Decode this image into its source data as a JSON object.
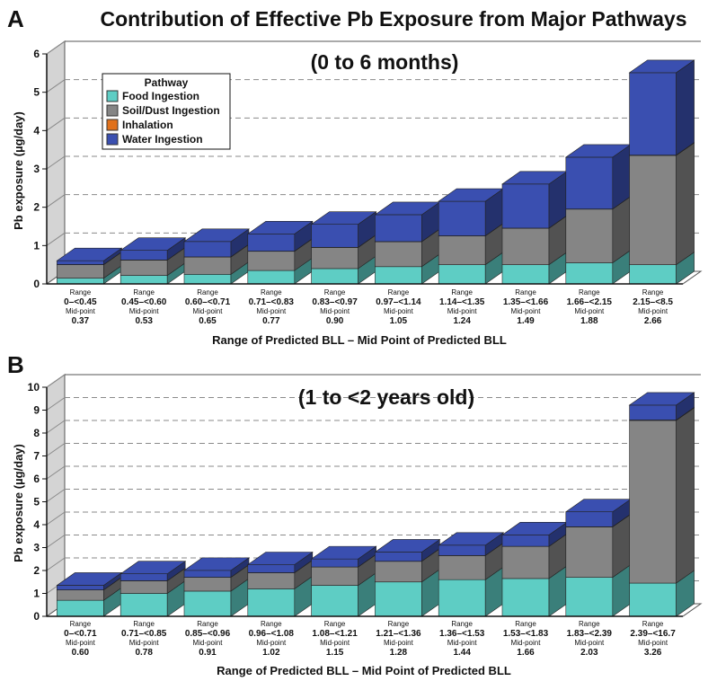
{
  "figure_title": "Contribution of Effective Pb Exposure from Major Pathways",
  "legend": {
    "title": "Pathway",
    "items": [
      {
        "label": "Food Ingestion",
        "color": "#5ecdc4"
      },
      {
        "label": "Soil/Dust Ingestion",
        "color": "#858585"
      },
      {
        "label": "Inhalation",
        "color": "#e0711c"
      },
      {
        "label": "Water Ingestion",
        "color": "#3a4fb0"
      }
    ]
  },
  "colors": {
    "food": "#5ecdc4",
    "soil": "#858585",
    "inhalation": "#e0711c",
    "water": "#3a4fb0",
    "wall": "#d4d4d4",
    "grid": "#8a8a8a"
  },
  "panel_labels": {
    "range": "Range",
    "midpoint": "Mid-point"
  },
  "chart_data": [
    {
      "panel": "A",
      "type": "bar",
      "stacked": true,
      "subtitle": "(0 to 6 months)",
      "xlabel": "Range of Predicted BLL – Mid Point of Predicted BLL",
      "ylabel": "Pb exposure (µg/day)",
      "ylim": [
        0,
        6
      ],
      "yticks": [
        "0",
        "1",
        "2",
        "3",
        "4",
        "5",
        "6"
      ],
      "ranges": [
        "0–<0.45",
        "0.45–<0.60",
        "0.60–<0.71",
        "0.71–<0.83",
        "0.83–<0.97",
        "0.97–<1.14",
        "1.14–<1.35",
        "1.35–<1.66",
        "1.66–<2.15",
        "2.15–<8.5"
      ],
      "midpoints": [
        "0.37",
        "0.53",
        "0.65",
        "0.77",
        "0.90",
        "1.05",
        "1.24",
        "1.49",
        "1.88",
        "2.66"
      ],
      "series": [
        {
          "name": "Food Ingestion",
          "values": [
            0.15,
            0.22,
            0.25,
            0.35,
            0.4,
            0.45,
            0.5,
            0.5,
            0.55,
            0.5
          ]
        },
        {
          "name": "Soil/Dust Ingestion",
          "values": [
            0.35,
            0.4,
            0.45,
            0.5,
            0.55,
            0.65,
            0.75,
            0.95,
            1.4,
            2.85
          ]
        },
        {
          "name": "Inhalation",
          "values": [
            0.005,
            0.005,
            0.005,
            0.005,
            0.005,
            0.005,
            0.005,
            0.005,
            0.005,
            0.01
          ]
        },
        {
          "name": "Water Ingestion",
          "values": [
            0.1,
            0.25,
            0.4,
            0.45,
            0.6,
            0.7,
            0.9,
            1.15,
            1.35,
            2.15
          ]
        }
      ],
      "grid": true
    },
    {
      "panel": "B",
      "type": "bar",
      "stacked": true,
      "subtitle": "(1 to <2 years old)",
      "xlabel": "Range of Predicted BLL – Mid Point of Predicted BLL",
      "ylabel": "Pb exposure (µg/day)",
      "ylim": [
        0,
        10
      ],
      "yticks": [
        "0",
        "1",
        "2",
        "3",
        "4",
        "5",
        "6",
        "7",
        "8",
        "9",
        "10"
      ],
      "ranges": [
        "0–<0.71",
        "0.71–<0.85",
        "0.85–<0.96",
        "0.96–<1.08",
        "1.08–<1.21",
        "1.21–<1.36",
        "1.36–<1.53",
        "1.53–<1.83",
        "1.83–<2.39",
        "2.39–<16.7"
      ],
      "midpoints": [
        "0.60",
        "0.78",
        "0.91",
        "1.02",
        "1.15",
        "1.28",
        "1.44",
        "1.66",
        "2.03",
        "3.26"
      ],
      "series": [
        {
          "name": "Food Ingestion",
          "values": [
            0.7,
            1.0,
            1.1,
            1.2,
            1.35,
            1.5,
            1.6,
            1.65,
            1.7,
            1.45
          ]
        },
        {
          "name": "Soil/Dust Ingestion",
          "values": [
            0.45,
            0.55,
            0.6,
            0.7,
            0.8,
            0.9,
            1.05,
            1.4,
            2.2,
            7.1
          ]
        },
        {
          "name": "Inhalation",
          "values": [
            0.005,
            0.005,
            0.005,
            0.005,
            0.005,
            0.005,
            0.005,
            0.005,
            0.01,
            0.02
          ]
        },
        {
          "name": "Water Ingestion",
          "values": [
            0.2,
            0.3,
            0.3,
            0.35,
            0.35,
            0.4,
            0.45,
            0.5,
            0.65,
            0.65
          ]
        }
      ],
      "grid": true
    }
  ]
}
